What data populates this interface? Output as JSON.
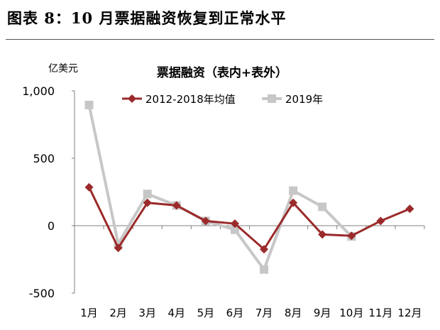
{
  "figure_title": "图表 8：10 月票据融资恢复到正常水平",
  "chart_data": {
    "type": "line",
    "title": "票据融资（表内+表外）",
    "unit_label": "亿美元",
    "categories": [
      "1月",
      "2月",
      "3月",
      "4月",
      "5月",
      "6月",
      "7月",
      "8月",
      "9月",
      "10月",
      "11月",
      "12月"
    ],
    "ylim": [
      -500,
      1000
    ],
    "yticks": [
      -500,
      0,
      500,
      1000
    ],
    "ytick_labels": [
      "-500",
      "0",
      "500",
      "1,000"
    ],
    "legend_position": "top",
    "series": [
      {
        "name": "2012-2018年均值",
        "color": "#9b2a2a",
        "marker": "diamond",
        "values": [
          285,
          -165,
          170,
          150,
          35,
          15,
          -175,
          170,
          -65,
          -75,
          35,
          125
        ]
      },
      {
        "name": "2019年",
        "color": "#c7c7c7",
        "marker": "square",
        "values": [
          895,
          -135,
          235,
          150,
          35,
          -30,
          -325,
          260,
          140,
          -80,
          null,
          null
        ]
      }
    ]
  }
}
